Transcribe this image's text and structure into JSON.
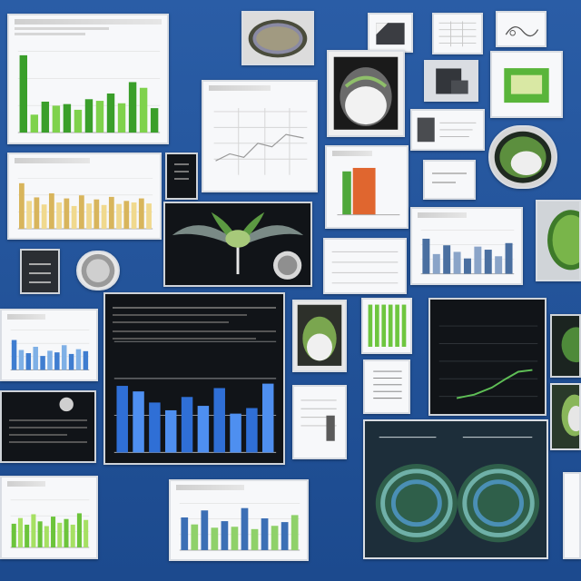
{
  "board": {
    "background": "#1f4f95",
    "accent_green": "#54b33b",
    "accent_yellow": "#e3c56b",
    "accent_blue": "#3a78c8"
  },
  "cards": [
    {
      "name": "chart-card-green-top-left",
      "kind": "bar",
      "colors": [
        "#3a9f2a",
        "#7fd24c"
      ],
      "values": [
        0.95,
        0.22,
        0.38,
        0.33,
        0.35,
        0.28,
        0.41,
        0.39,
        0.48,
        0.36,
        0.62,
        0.55,
        0.3
      ]
    },
    {
      "name": "chart-card-yellow",
      "kind": "bar",
      "colors": [
        "#d8b55c",
        "#f0d98e"
      ],
      "values": [
        0.9,
        0.55,
        0.62,
        0.48,
        0.7,
        0.52,
        0.6,
        0.45,
        0.66,
        0.5,
        0.58,
        0.47,
        0.63,
        0.49,
        0.55,
        0.52,
        0.6,
        0.5
      ]
    },
    {
      "name": "chart-card-blue-left",
      "kind": "bar",
      "colors": [
        "#3f7dd0",
        "#7fb0e6"
      ],
      "values": [
        0.75,
        0.5,
        0.42,
        0.58,
        0.35,
        0.48,
        0.44,
        0.62,
        0.4,
        0.52,
        0.47
      ]
    },
    {
      "name": "chart-card-green-bottom-left",
      "kind": "bar",
      "colors": [
        "#6cc43b",
        "#a6e063"
      ],
      "values": [
        0.5,
        0.62,
        0.48,
        0.7,
        0.55,
        0.45,
        0.65,
        0.52,
        0.6,
        0.48,
        0.72,
        0.58
      ]
    },
    {
      "name": "chart-card-mixed-bottom",
      "kind": "bar",
      "colors": [
        "#3c6fb5",
        "#8fd16a"
      ],
      "values": [
        0.7,
        0.55,
        0.85,
        0.48,
        0.62,
        0.5,
        0.9,
        0.45,
        0.68,
        0.52,
        0.6,
        0.75
      ]
    },
    {
      "name": "chart-card-dark-center",
      "kind": "bar",
      "colors": [
        "#2f6fd6",
        "#4e8ff0"
      ],
      "values": [
        0.6,
        0.55,
        0.45,
        0.38,
        0.5,
        0.42,
        0.58,
        0.35,
        0.4,
        0.62
      ]
    },
    {
      "name": "chart-card-grey-middle",
      "kind": "bar",
      "colors": [
        "#4a6fa0",
        "#8aa4c8"
      ],
      "values": [
        0.8,
        0.45,
        0.65,
        0.5,
        0.35,
        0.62,
        0.55,
        0.4,
        0.7
      ]
    }
  ]
}
